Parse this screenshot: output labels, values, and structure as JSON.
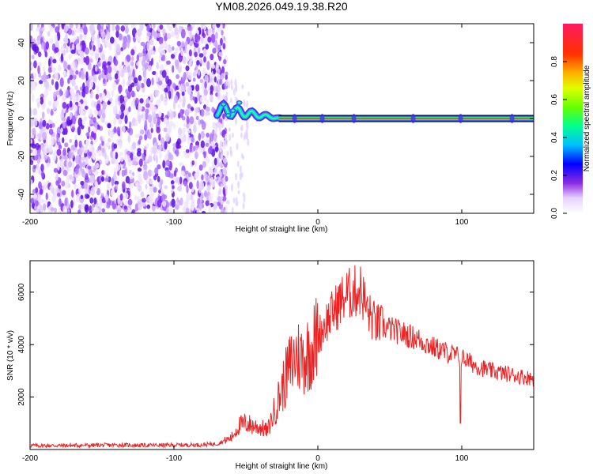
{
  "title": "YM08.2026.049.19.38.R20",
  "colors": {
    "snr_line": "#ee2222",
    "axis": "#000000"
  },
  "chart_data": [
    {
      "type": "heatmap",
      "name": "spectrogram",
      "xlabel": "Height of straight line (km)",
      "ylabel": "Frequency (Hz)",
      "xlim": [
        -200,
        150
      ],
      "ylim": [
        -50,
        50
      ],
      "xticks": [
        -200,
        -100,
        0,
        100
      ],
      "yticks": [
        40,
        20,
        0,
        -20,
        -40
      ],
      "noise_region_x": [
        -200,
        -70
      ],
      "signal_start_x": -70,
      "signal_center_freq": 0,
      "colorbar": {
        "label": "Normalized spectral amplitude",
        "range": [
          0.0,
          1.0
        ],
        "ticks": [
          "0.0",
          "0.2",
          "0.4",
          "0.6",
          "0.8"
        ],
        "tick_values": [
          0.0,
          0.2,
          0.4,
          0.6,
          0.8
        ]
      }
    },
    {
      "type": "line",
      "name": "snr",
      "xlabel": "Height of straight line (km)",
      "ylabel": "SNR (10 * v/v)",
      "xlim": [
        -200,
        150
      ],
      "ylim": [
        0,
        7200
      ],
      "xticks": [
        -200,
        -100,
        0,
        100
      ],
      "yticks": [
        2000,
        4000,
        6000
      ],
      "series": [
        {
          "name": "SNR",
          "x": [
            -200,
            -180,
            -160,
            -140,
            -120,
            -100,
            -80,
            -70,
            -60,
            -55,
            -50,
            -45,
            -40,
            -35,
            -30,
            -25,
            -20,
            -15,
            -10,
            -5,
            0,
            5,
            10,
            15,
            20,
            25,
            30,
            35,
            40,
            50,
            60,
            70,
            80,
            90,
            95,
            100,
            110,
            120,
            130,
            140,
            150
          ],
          "y": [
            150,
            150,
            160,
            170,
            160,
            170,
            180,
            220,
            450,
            900,
            1000,
            900,
            850,
            700,
            1500,
            2300,
            3100,
            3600,
            3500,
            3800,
            4300,
            4800,
            5200,
            5600,
            5900,
            6000,
            6100,
            5200,
            4800,
            4600,
            4400,
            4200,
            3900,
            3700,
            3600,
            3500,
            3200,
            3000,
            2900,
            2800,
            2700
          ]
        }
      ]
    }
  ]
}
